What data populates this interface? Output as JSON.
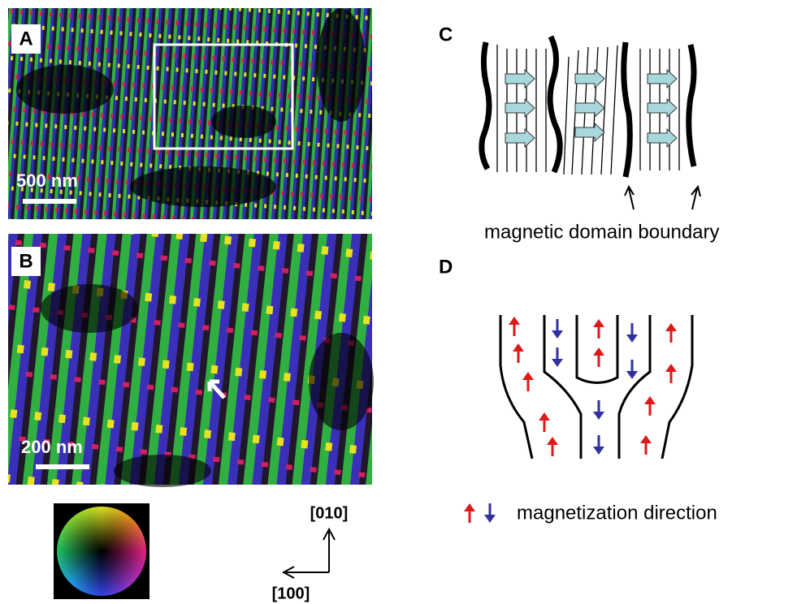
{
  "panels": {
    "A": {
      "label": "A",
      "scale_bar": "500 nm"
    },
    "B": {
      "label": "B",
      "scale_bar": "200 nm"
    },
    "C": {
      "label": "C",
      "caption": "magnetic domain boundary"
    },
    "D": {
      "label": "D",
      "legend": "magnetization direction"
    }
  },
  "axes": {
    "y": "[010]",
    "x": "[100]"
  }
}
